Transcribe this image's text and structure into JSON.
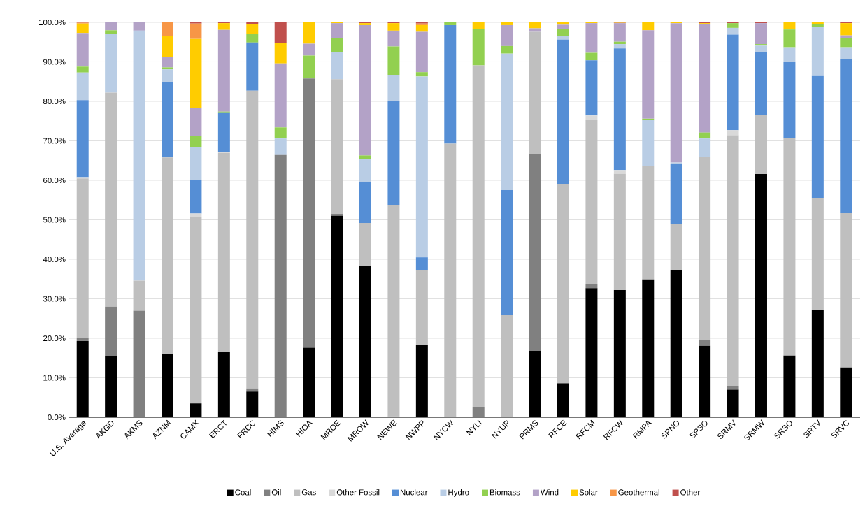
{
  "chart_data": {
    "type": "bar",
    "stacked": true,
    "grid": "y",
    "legend": "bottom",
    "categories": [
      "U.S. Average",
      "AKGD",
      "AKMS",
      "AZNM",
      "CAMX",
      "ERCT",
      "FRCC",
      "HIMS",
      "HIOA",
      "MROE",
      "MROW",
      "NEWE",
      "NWPP",
      "NYCW",
      "NYLI",
      "NYUP",
      "PRMS",
      "RFCE",
      "RFCM",
      "RFCW",
      "RMPA",
      "SPNO",
      "SPSO",
      "SRMV",
      "SRMW",
      "SRSO",
      "SRTV",
      "SRVC"
    ],
    "ylim": [
      0,
      100
    ],
    "yticks": [
      {
        "value": 0,
        "label": "0.0%"
      },
      {
        "value": 10,
        "label": "10.0%"
      },
      {
        "value": 20,
        "label": "20.0%"
      },
      {
        "value": 30,
        "label": "30.0%"
      },
      {
        "value": 40,
        "label": "40.0%"
      },
      {
        "value": 50,
        "label": "50.0%"
      },
      {
        "value": 60,
        "label": "60.0%"
      },
      {
        "value": 70,
        "label": "70.0%"
      },
      {
        "value": 80,
        "label": "80.0%"
      },
      {
        "value": 90,
        "label": "90.0%"
      },
      {
        "value": 100,
        "label": "100.0%"
      }
    ],
    "series": [
      {
        "name": "Coal",
        "color": "#000000",
        "values": [
          19.3,
          15.5,
          0,
          16.0,
          3.5,
          16.5,
          6.5,
          0,
          17.6,
          51.0,
          38.3,
          0,
          18.4,
          0,
          0,
          0,
          16.8,
          8.6,
          32.7,
          32.2,
          34.9,
          37.2,
          18.1,
          7.0,
          61.6,
          15.6,
          27.2,
          12.6
        ]
      },
      {
        "name": "Oil",
        "color": "#808080",
        "values": [
          0.8,
          12.5,
          27.0,
          0,
          0,
          0,
          0.8,
          66.4,
          68.2,
          0.5,
          0,
          0.2,
          0,
          0,
          2.5,
          0,
          49.9,
          0,
          1.1,
          0,
          0,
          0,
          1.5,
          0.8,
          0,
          0,
          0,
          0
        ]
      },
      {
        "name": "Gas",
        "color": "#bfbfbf",
        "values": [
          40.4,
          54.2,
          7.6,
          49.8,
          47.2,
          50.4,
          75.4,
          0,
          0,
          34.1,
          10.9,
          53.5,
          18.8,
          69.3,
          86.6,
          26.0,
          30.9,
          50.5,
          41.4,
          29.5,
          28.7,
          11.7,
          46.4,
          63.6,
          15.0,
          55.0,
          28.3,
          39.1
        ]
      },
      {
        "name": "Other Fossil",
        "color": "#d9d9d9",
        "values": [
          0.3,
          0,
          0,
          0,
          0.9,
          0.3,
          null,
          0,
          0,
          0,
          0,
          0,
          0,
          0,
          0,
          0,
          0,
          0,
          1.2,
          0.9,
          0,
          0,
          0,
          1.3,
          0,
          0,
          0,
          0
        ]
      },
      {
        "name": "Nuclear",
        "color": "#558ed5",
        "values": [
          19.5,
          0,
          0,
          19.0,
          8.4,
          10.0,
          12.2,
          0,
          0,
          0,
          10.4,
          26.4,
          3.3,
          30.0,
          0,
          31.5,
          0,
          36.5,
          14.0,
          30.8,
          0,
          15.3,
          0,
          24.2,
          15.9,
          19.3,
          30.9,
          39.1
        ]
      },
      {
        "name": "Hydro",
        "color": "#b9cde5",
        "values": [
          7.0,
          14.9,
          63.3,
          3.3,
          8.4,
          0,
          0,
          4.2,
          0,
          6.9,
          5.7,
          6.5,
          45.8,
          0,
          0,
          34.6,
          0,
          1.0,
          0,
          1.1,
          11.6,
          0.3,
          4.6,
          1.7,
          1.6,
          3.8,
          12.5,
          2.9
        ]
      },
      {
        "name": "Biomass",
        "color": "#92d050",
        "values": [
          1.5,
          0.9,
          0,
          0.5,
          2.8,
          0.2,
          2.1,
          2.8,
          5.8,
          3.5,
          1.0,
          7.3,
          1.1,
          0.7,
          9.2,
          1.9,
          0,
          1.7,
          1.9,
          0.6,
          0.4,
          0,
          1.5,
          1.2,
          0.4,
          4.5,
          0.7,
          2.4
        ]
      },
      {
        "name": "Wind",
        "color": "#b3a2c7",
        "values": [
          8.5,
          2.0,
          2.1,
          2.7,
          7.2,
          20.7,
          0,
          16.2,
          3.0,
          3.8,
          33.0,
          4.0,
          10.2,
          0,
          0,
          5.3,
          0.9,
          1.1,
          7.5,
          4.7,
          22.4,
          35.3,
          27.4,
          0,
          5.3,
          0,
          0,
          0.6
        ]
      },
      {
        "name": "Solar",
        "color": "#ffcc00",
        "values": [
          2.4,
          0,
          0,
          5.2,
          17.4,
          1.7,
          2.6,
          5.2,
          5.4,
          0.2,
          0.5,
          1.9,
          1.7,
          0,
          1.7,
          0.7,
          1.5,
          0.6,
          0.2,
          0.1,
          2.0,
          0.2,
          0.3,
          0,
          0,
          1.8,
          0.4,
          3.1
        ]
      },
      {
        "name": "Geothermal",
        "color": "#f79646",
        "values": [
          0.2,
          0,
          0,
          3.5,
          3.9,
          0,
          0,
          0,
          0,
          0,
          0,
          0,
          0.4,
          0,
          0,
          0,
          0,
          0,
          0,
          0,
          0,
          0,
          0,
          0,
          0,
          0,
          0,
          0
        ]
      },
      {
        "name": "Other",
        "color": "#c0504d",
        "values": [
          0.1,
          0,
          0,
          0,
          0.3,
          0.2,
          0.4,
          5.2,
          0,
          0,
          0.2,
          0.2,
          0.3,
          0,
          0,
          0,
          0,
          0,
          0,
          0.1,
          0,
          0,
          0.2,
          0.2,
          0.2,
          0,
          0,
          0.2
        ]
      }
    ]
  }
}
